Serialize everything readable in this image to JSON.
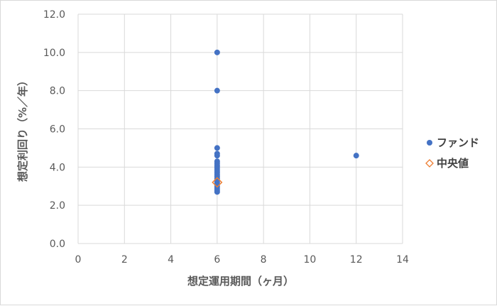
{
  "chart_data": {
    "type": "scatter",
    "xlabel": "想定運用期間（ヶ月）",
    "ylabel": "想定利回り（%／年）",
    "xlim": [
      0,
      14
    ],
    "ylim": [
      0.0,
      12.0
    ],
    "x_ticks": [
      "0",
      "2",
      "4",
      "6",
      "8",
      "10",
      "12",
      "14"
    ],
    "y_ticks": [
      "0.0",
      "2.0",
      "4.0",
      "6.0",
      "8.0",
      "10.0",
      "12.0"
    ],
    "grid": true,
    "legend_position": "right",
    "series": [
      {
        "name": "ファンド",
        "marker": "circle",
        "color": "#4472C4",
        "points": [
          {
            "x": 6,
            "y": 10.0
          },
          {
            "x": 6,
            "y": 8.0
          },
          {
            "x": 6,
            "y": 5.0
          },
          {
            "x": 6,
            "y": 4.7
          },
          {
            "x": 6,
            "y": 4.6
          },
          {
            "x": 6,
            "y": 4.3
          },
          {
            "x": 6,
            "y": 4.2
          },
          {
            "x": 6,
            "y": 4.1
          },
          {
            "x": 6,
            "y": 4.0
          },
          {
            "x": 6,
            "y": 3.9
          },
          {
            "x": 6,
            "y": 3.8
          },
          {
            "x": 6,
            "y": 3.7
          },
          {
            "x": 6,
            "y": 3.6
          },
          {
            "x": 6,
            "y": 3.5
          },
          {
            "x": 6,
            "y": 3.4
          },
          {
            "x": 6,
            "y": 3.3
          },
          {
            "x": 6,
            "y": 3.2
          },
          {
            "x": 6,
            "y": 3.1
          },
          {
            "x": 6,
            "y": 3.0
          },
          {
            "x": 6,
            "y": 2.9
          },
          {
            "x": 6,
            "y": 2.8
          },
          {
            "x": 6,
            "y": 2.7
          },
          {
            "x": 12,
            "y": 4.6
          }
        ]
      },
      {
        "name": "中央値",
        "marker": "diamond-open",
        "color": "#ED7D31",
        "points": [
          {
            "x": 6,
            "y": 3.2
          }
        ]
      }
    ]
  }
}
